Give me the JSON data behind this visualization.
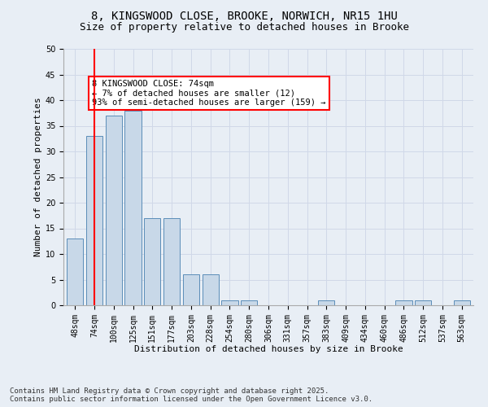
{
  "title1": "8, KINGSWOOD CLOSE, BROOKE, NORWICH, NR15 1HU",
  "title2": "Size of property relative to detached houses in Brooke",
  "xlabel": "Distribution of detached houses by size in Brooke",
  "ylabel": "Number of detached properties",
  "categories": [
    "48sqm",
    "74sqm",
    "100sqm",
    "125sqm",
    "151sqm",
    "177sqm",
    "203sqm",
    "228sqm",
    "254sqm",
    "280sqm",
    "306sqm",
    "331sqm",
    "357sqm",
    "383sqm",
    "409sqm",
    "434sqm",
    "460sqm",
    "486sqm",
    "512sqm",
    "537sqm",
    "563sqm"
  ],
  "values": [
    13,
    33,
    37,
    38,
    17,
    17,
    6,
    6,
    1,
    1,
    0,
    0,
    0,
    1,
    0,
    0,
    0,
    1,
    1,
    0,
    1
  ],
  "bar_color": "#c8d8e8",
  "bar_edge_color": "#5b8db8",
  "vline_x_index": 1,
  "vline_color": "red",
  "annotation_text": "8 KINGSWOOD CLOSE: 74sqm\n← 7% of detached houses are smaller (12)\n93% of semi-detached houses are larger (159) →",
  "annotation_box_color": "white",
  "annotation_box_edge": "red",
  "ylim": [
    0,
    50
  ],
  "yticks": [
    0,
    5,
    10,
    15,
    20,
    25,
    30,
    35,
    40,
    45,
    50
  ],
  "grid_color": "#d0d8e8",
  "background_color": "#e8eef5",
  "footer": "Contains HM Land Registry data © Crown copyright and database right 2025.\nContains public sector information licensed under the Open Government Licence v3.0.",
  "title_fontsize": 10,
  "subtitle_fontsize": 9,
  "xlabel_fontsize": 8,
  "ylabel_fontsize": 8,
  "tick_fontsize": 7,
  "annotation_fontsize": 7.5,
  "footer_fontsize": 6.5
}
